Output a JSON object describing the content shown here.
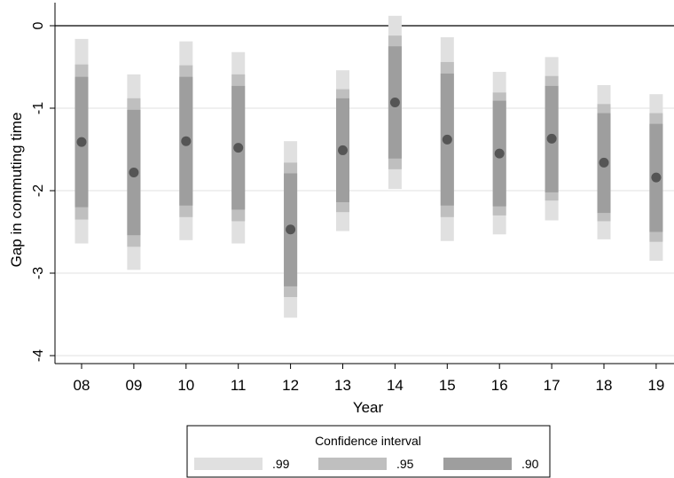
{
  "chart_data": {
    "type": "interval",
    "xlabel": "Year",
    "ylabel": "Gap in commuting time",
    "categories": [
      "08",
      "09",
      "10",
      "11",
      "12",
      "13",
      "14",
      "15",
      "16",
      "17",
      "18",
      "19"
    ],
    "ylim": [
      -4.15,
      0.25
    ],
    "yticks": [
      0,
      -1,
      -2,
      -3,
      -4
    ],
    "ytick_labels": [
      "0",
      "-1",
      "-2",
      "-3",
      "-4"
    ],
    "grid": true,
    "reference_line": 0,
    "estimates": [
      -1.41,
      -1.78,
      -1.4,
      -1.48,
      -2.47,
      -1.51,
      -0.93,
      -1.38,
      -1.55,
      -1.37,
      -1.66,
      -1.84
    ],
    "ci_90": [
      [
        -2.2,
        -0.62
      ],
      [
        -2.54,
        -1.02
      ],
      [
        -2.18,
        -0.62
      ],
      [
        -2.23,
        -0.73
      ],
      [
        -3.16,
        -1.79
      ],
      [
        -2.14,
        -0.88
      ],
      [
        -1.61,
        -0.25
      ],
      [
        -2.18,
        -0.58
      ],
      [
        -2.19,
        -0.91
      ],
      [
        -2.02,
        -0.73
      ],
      [
        -2.27,
        -1.06
      ],
      [
        -2.5,
        -1.19
      ]
    ],
    "ci_95": [
      [
        -2.35,
        -0.47
      ],
      [
        -2.68,
        -0.88
      ],
      [
        -2.32,
        -0.48
      ],
      [
        -2.37,
        -0.59
      ],
      [
        -3.29,
        -1.66
      ],
      [
        -2.26,
        -0.77
      ],
      [
        -1.74,
        -0.12
      ],
      [
        -2.32,
        -0.44
      ],
      [
        -2.3,
        -0.81
      ],
      [
        -2.12,
        -0.61
      ],
      [
        -2.37,
        -0.95
      ],
      [
        -2.62,
        -1.06
      ]
    ],
    "ci_99": [
      [
        -2.64,
        -0.16
      ],
      [
        -2.96,
        -0.59
      ],
      [
        -2.6,
        -0.19
      ],
      [
        -2.64,
        -0.32
      ],
      [
        -3.54,
        -1.4
      ],
      [
        -2.49,
        -0.54
      ],
      [
        -1.98,
        0.12
      ],
      [
        -2.61,
        -0.14
      ],
      [
        -2.53,
        -0.56
      ],
      [
        -2.36,
        -0.38
      ],
      [
        -2.59,
        -0.72
      ],
      [
        -2.85,
        -0.83
      ]
    ],
    "legend": {
      "title": "Confidence interval",
      "position": "bottom",
      "items": [
        {
          "label": ".99",
          "color": "#e0e0e0"
        },
        {
          "label": ".95",
          "color": "#bfbfbf"
        },
        {
          "label": ".90",
          "color": "#9e9e9e"
        }
      ]
    },
    "colors": {
      "ci_99": "#e0e0e0",
      "ci_95": "#bfbfbf",
      "ci_90": "#9e9e9e",
      "point": "#555555",
      "grid": "#e6e6e6",
      "reference_line": "#000000"
    }
  }
}
